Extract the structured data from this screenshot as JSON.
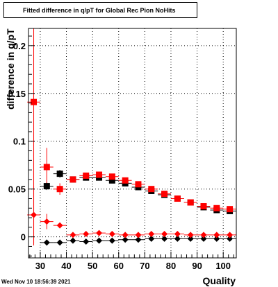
{
  "chart_data": {
    "type": "scatter",
    "title": "Fitted difference in q/pT for Global Rec Pion NoHits",
    "xlabel": "Quality",
    "ylabel": "difference in q/pT",
    "xlim": [
      25.5,
      105
    ],
    "ylim": [
      -0.022,
      0.218
    ],
    "x_ticks": [
      30,
      40,
      50,
      60,
      70,
      80,
      90,
      100
    ],
    "x_tick_labels": [
      "30",
      "40",
      "50",
      "60",
      "70",
      "80",
      "90",
      "100"
    ],
    "y_ticks": [
      0,
      0.05,
      0.1,
      0.15,
      0.2
    ],
    "y_tick_labels": [
      "0",
      "0.05",
      "0.1",
      "0.15",
      "0.2"
    ],
    "grid": true,
    "timestamp": "Wed Nov 10 18:56:39 2021",
    "series": [
      {
        "color": "#000000",
        "marker": "square",
        "x": [
          32.5,
          37.5,
          42.5,
          47.5,
          52.5,
          57.5,
          62.5,
          67.5,
          72.5,
          77.5,
          82.5,
          87.5,
          92.5,
          97.5,
          102.5
        ],
        "y": [
          0.053,
          0.066,
          0.06,
          0.062,
          0.062,
          0.059,
          0.056,
          0.052,
          0.048,
          0.044,
          0.04,
          0.036,
          0.031,
          0.028,
          0.027
        ],
        "err": [
          0.004,
          0.004,
          0.002,
          0.002,
          0.002,
          0.002,
          0.002,
          0.002,
          0.002,
          0.002,
          0.002,
          0.002,
          0.002,
          0.002,
          0.002
        ]
      },
      {
        "color": "#ff0000",
        "marker": "square",
        "x": [
          27.5,
          32.5,
          37.5,
          42.5,
          47.5,
          52.5,
          57.5,
          62.5,
          67.5,
          72.5,
          77.5,
          82.5,
          87.5,
          92.5,
          97.5,
          102.5
        ],
        "y": [
          0.141,
          0.073,
          0.05,
          0.06,
          0.064,
          0.065,
          0.063,
          0.059,
          0.055,
          0.05,
          0.045,
          0.04,
          0.036,
          0.032,
          0.03,
          0.029
        ],
        "err": [
          0.15,
          0.02,
          0.006,
          0.003,
          0.002,
          0.002,
          0.002,
          0.002,
          0.002,
          0.002,
          0.002,
          0.002,
          0.002,
          0.002,
          0.002,
          0.002
        ]
      },
      {
        "color": "#000000",
        "marker": "diamond",
        "x": [
          32.5,
          37.5,
          42.5,
          47.5,
          52.5,
          57.5,
          62.5,
          67.5,
          72.5,
          77.5,
          82.5,
          87.5,
          92.5,
          97.5,
          102.5
        ],
        "y": [
          -0.006,
          -0.006,
          -0.004,
          -0.005,
          -0.004,
          -0.004,
          -0.003,
          -0.003,
          -0.002,
          -0.002,
          -0.002,
          -0.002,
          -0.002,
          -0.002,
          -0.002
        ],
        "err": [
          0.003,
          0.002,
          0.001,
          0.001,
          0.001,
          0.001,
          0.001,
          0.001,
          0.001,
          0.001,
          0.001,
          0.001,
          0.001,
          0.001,
          0.001
        ]
      },
      {
        "color": "#ff0000",
        "marker": "diamond",
        "x": [
          27.5,
          32.5,
          37.5,
          42.5,
          47.5,
          52.5,
          57.5,
          62.5,
          67.5,
          72.5,
          77.5,
          82.5,
          87.5,
          92.5,
          97.5,
          102.5
        ],
        "y": [
          0.023,
          0.016,
          0.012,
          0.002,
          0.003,
          0.004,
          0.003,
          0.002,
          0.002,
          0.003,
          0.003,
          0.003,
          0.002,
          0.002,
          0.002,
          0.002
        ],
        "err": [
          0.03,
          0.008,
          0.003,
          0.001,
          0.001,
          0.001,
          0.001,
          0.001,
          0.001,
          0.001,
          0.001,
          0.001,
          0.001,
          0.001,
          0.001,
          0.001
        ]
      }
    ]
  }
}
